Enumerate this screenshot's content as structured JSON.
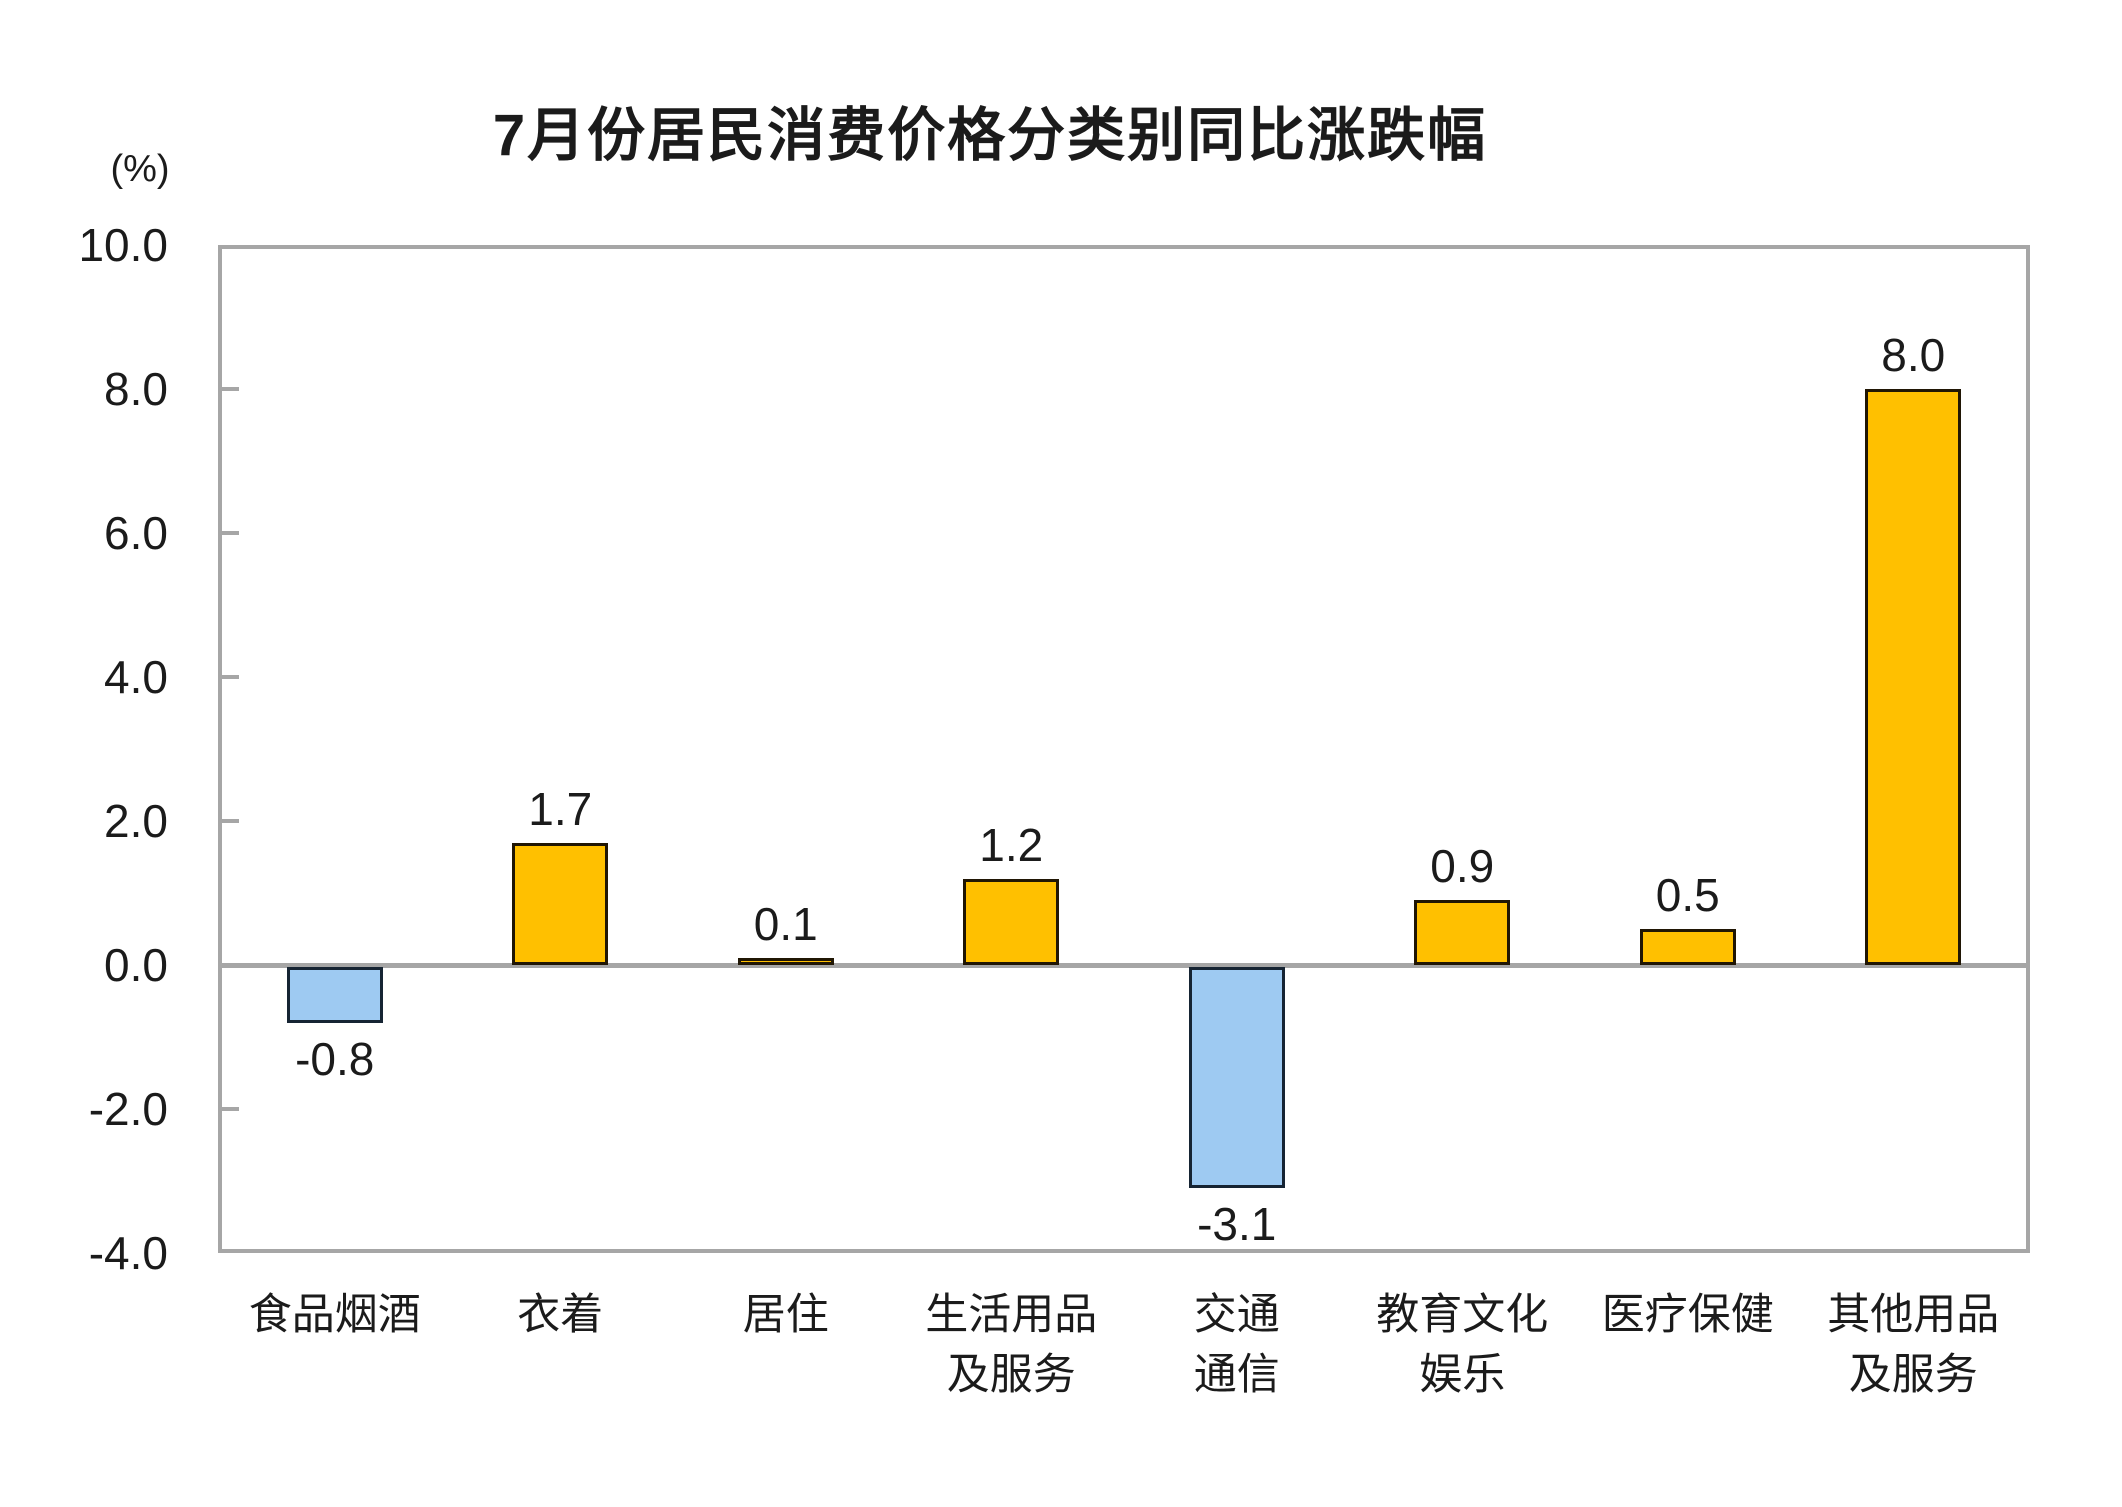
{
  "chart_data": {
    "type": "bar",
    "title": "7月份居民消费价格分类别同比涨跌幅",
    "ylabel": "(%)",
    "xlabel": "",
    "ylim": [
      -4.0,
      10.0
    ],
    "ytick_step": 2.0,
    "yticks": [
      "10.0",
      "8.0",
      "6.0",
      "4.0",
      "2.0",
      "0.0",
      "-2.0",
      "-4.0"
    ],
    "grid": false,
    "legend": "none",
    "categories": [
      "食品烟酒",
      "衣着",
      "居住",
      "生活用品及服务",
      "交通通信",
      "教育文化娱乐",
      "医疗保健",
      "其他用品及服务"
    ],
    "category_display_lines": [
      [
        "食品烟酒"
      ],
      [
        "衣着"
      ],
      [
        "居住"
      ],
      [
        "生活用品",
        "及服务"
      ],
      [
        "交通",
        "通信"
      ],
      [
        "教育文化",
        "娱乐"
      ],
      [
        "医疗保健"
      ],
      [
        "其他用品",
        "及服务"
      ]
    ],
    "values": [
      -0.8,
      1.7,
      0.1,
      1.2,
      -3.1,
      0.9,
      0.5,
      8.0
    ],
    "value_labels": [
      "-0.8",
      "1.7",
      "0.1",
      "1.2",
      "-3.1",
      "0.9",
      "0.5",
      "8.0"
    ],
    "colors": {
      "positive_fill": "#FFC000",
      "positive_border": "#201604",
      "negative_fill": "#9ECAF2",
      "negative_border": "#162433",
      "axis": "#A6A6A6",
      "text": "#1B1B1B"
    }
  }
}
